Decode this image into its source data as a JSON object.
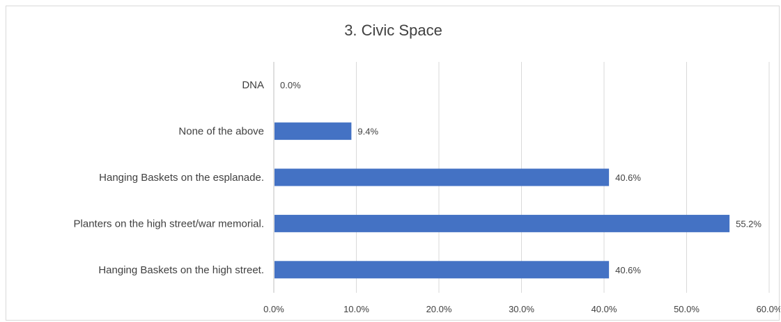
{
  "chart_data": {
    "type": "bar",
    "orientation": "horizontal",
    "title": "3. Civic Space",
    "categories": [
      "DNA",
      "None of the above",
      "Hanging Baskets on the esplanade.",
      "Planters on the high street/war memorial.",
      "Hanging Baskets on the high street."
    ],
    "values": [
      0.0,
      9.4,
      40.6,
      55.2,
      40.6
    ],
    "value_labels": [
      "0.0%",
      "9.4%",
      "40.6%",
      "55.2%",
      "40.6%"
    ],
    "xlim": [
      0,
      60
    ],
    "x_ticks": [
      "0.0%",
      "10.0%",
      "20.0%",
      "30.0%",
      "40.0%",
      "50.0%",
      "60.0%"
    ],
    "xlabel": "",
    "ylabel": "",
    "grid": "vertical",
    "legend": "none",
    "bar_color": "#4472c4",
    "grid_color": "#d9d9d9",
    "text_color": "#404040"
  }
}
